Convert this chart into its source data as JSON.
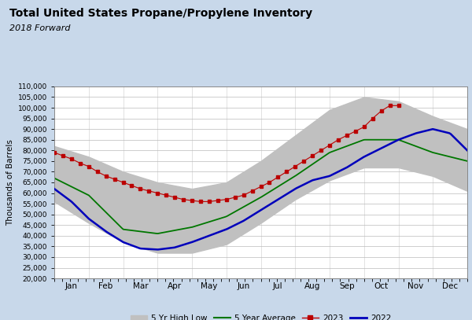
{
  "title": "Total United States Propane/Propylene Inventory",
  "subtitle": "2018 Forward",
  "ylabel": "Thousands of Barrels",
  "background_color": "#c8d8ea",
  "plot_bg_color": "#ffffff",
  "ylim": [
    20000,
    110000
  ],
  "yticks": [
    20000,
    25000,
    30000,
    35000,
    40000,
    45000,
    50000,
    55000,
    60000,
    65000,
    70000,
    75000,
    80000,
    85000,
    90000,
    95000,
    100000,
    105000,
    110000
  ],
  "months": [
    "Jan",
    "Feb",
    "Mar",
    "Apr",
    "May",
    "Jun",
    "Jul",
    "Aug",
    "Sep",
    "Oct",
    "Nov",
    "Dec"
  ],
  "month_centers": [
    0,
    1,
    2,
    3,
    4,
    5,
    6,
    7,
    8,
    9,
    10,
    11,
    12
  ],
  "five_yr_high": [
    82000,
    77000,
    70000,
    65000,
    62000,
    65000,
    75000,
    87000,
    99000,
    105000,
    103000,
    96000,
    90000
  ],
  "five_yr_low": [
    56000,
    46000,
    37000,
    32000,
    32000,
    36000,
    46000,
    57000,
    66000,
    72000,
    72000,
    68000,
    61000
  ],
  "five_yr_avg": [
    67000,
    59000,
    43000,
    41000,
    44000,
    49000,
    58000,
    68000,
    79000,
    85000,
    85000,
    79000,
    75000
  ],
  "band_color": "#c0c0c0",
  "avg_color": "#007700",
  "color_2022": "#0000bb",
  "color_2023": "#bb0000",
  "legend_band": "5 Yr High Low",
  "legend_avg": "5 Year Average",
  "legend_2023": "2023",
  "legend_2022": "2022"
}
